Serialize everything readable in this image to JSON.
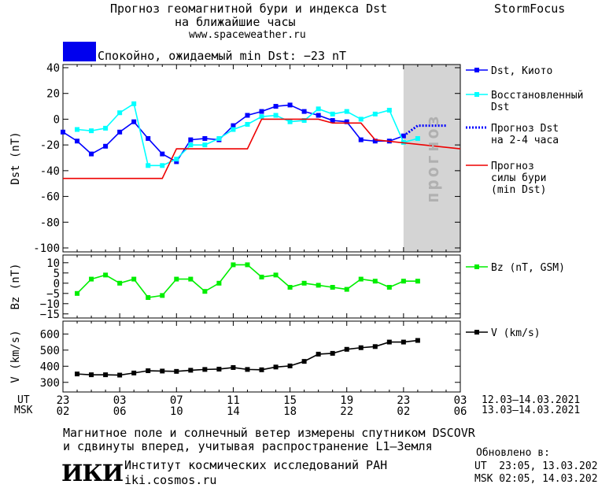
{
  "header": {
    "title_line1": "Прогноз геомагнитной бури и индекса Dst",
    "title_line2": "на ближайшие часы",
    "url": "www.spaceweather.ru",
    "brand": "StormFocus",
    "status_text": "Спокойно, ожидаемый min Dst: −23 nT",
    "status_color": "#0000ee"
  },
  "chart_data": [
    {
      "type": "line",
      "panel": "dst",
      "ylabel": "Dst (nT)",
      "ylim": [
        -100,
        40
      ],
      "yticks": [
        40,
        20,
        0,
        -20,
        -40,
        -60,
        -80,
        -100
      ],
      "xlim": [
        0,
        28
      ],
      "forecast_band": [
        24,
        28
      ],
      "forecast_label": "прогноз",
      "series": [
        {
          "name": "Dst, Киото",
          "color": "#0000ff",
          "marker": "square",
          "style": "solid",
          "x": [
            0,
            1,
            2,
            3,
            4,
            5,
            6,
            7,
            8,
            9,
            10,
            11,
            12,
            13,
            14,
            15,
            16,
            17,
            18,
            19,
            20,
            21,
            22,
            23,
            24
          ],
          "y": [
            -10,
            -17,
            -27,
            -21,
            -10,
            -2,
            -15,
            -27,
            -33,
            -16,
            -15,
            -16,
            -5,
            3,
            6,
            10,
            11,
            6,
            3,
            -1,
            -2,
            -16,
            -17,
            -17,
            -13
          ]
        },
        {
          "name": "Восстановленный Dst",
          "color": "#00ffff",
          "marker": "square",
          "style": "solid",
          "x": [
            1,
            2,
            3,
            4,
            5,
            6,
            7,
            8,
            9,
            10,
            11,
            12,
            13,
            14,
            15,
            16,
            17,
            18,
            19,
            20,
            21,
            22,
            23,
            24,
            25
          ],
          "y": [
            -8,
            -9,
            -7,
            5,
            12,
            -36,
            -36,
            -31,
            -20,
            -20,
            -15,
            -8,
            -4,
            2,
            3,
            -2,
            -1,
            8,
            4,
            6,
            0,
            4,
            7,
            -18,
            -15
          ]
        },
        {
          "name": "Прогноз Dst на 2-4 часа",
          "color": "#0000ff",
          "marker": "none",
          "style": "dotted",
          "x": [
            24,
            25,
            26,
            27
          ],
          "y": [
            -13,
            -5,
            -5,
            -5
          ]
        },
        {
          "name": "Прогноз силы бури (min Dst)",
          "color": "#ee0000",
          "marker": "none",
          "style": "step",
          "x": [
            0,
            7,
            8,
            13,
            14,
            18,
            19,
            21,
            22,
            28
          ],
          "y": [
            -46,
            -46,
            -23,
            -23,
            0,
            0,
            -3,
            -3,
            -16,
            -23
          ]
        }
      ]
    },
    {
      "type": "line",
      "panel": "bz",
      "ylabel": "Bz (nT)",
      "ylim": [
        -17,
        13
      ],
      "yticks": [
        10,
        5,
        0,
        -5,
        -10,
        -15
      ],
      "ytick_labels": [
        "10",
        "5",
        "0",
        "−5",
        "−10",
        "−15"
      ],
      "xlim": [
        0,
        28
      ],
      "series": [
        {
          "name": "Bz (nT, GSM)",
          "color": "#00ee00",
          "marker": "square",
          "style": "solid",
          "x": [
            1,
            2,
            3,
            4,
            5,
            6,
            7,
            8,
            9,
            10,
            11,
            12,
            13,
            14,
            15,
            16,
            17,
            18,
            19,
            20,
            21,
            22,
            23,
            24,
            25
          ],
          "y": [
            -5,
            2,
            4,
            0,
            2,
            -7,
            -6,
            2,
            2,
            -4,
            0,
            9,
            9,
            3,
            4,
            -2,
            0,
            -1,
            -2,
            -3,
            2,
            1,
            -2,
            1,
            1
          ]
        }
      ]
    },
    {
      "type": "line",
      "panel": "v",
      "ylabel": "V (km/s)",
      "ylim": [
        250,
        670
      ],
      "yticks": [
        600,
        500,
        400,
        300
      ],
      "xlim": [
        0,
        28
      ],
      "series": [
        {
          "name": "V (km/s)",
          "color": "#000000",
          "marker": "square",
          "style": "solid",
          "x": [
            1,
            2,
            3,
            4,
            5,
            6,
            7,
            8,
            9,
            10,
            11,
            12,
            13,
            14,
            15,
            16,
            17,
            18,
            19,
            20,
            21,
            22,
            23,
            24,
            25
          ],
          "y": [
            352,
            347,
            347,
            345,
            358,
            372,
            370,
            368,
            375,
            380,
            382,
            392,
            380,
            378,
            395,
            402,
            430,
            475,
            480,
            505,
            515,
            522,
            550,
            550,
            560
          ]
        }
      ]
    }
  ],
  "x_axis": {
    "ut_label": "UT",
    "msk_label": "MSK",
    "ut_ticks": [
      "23",
      "03",
      "07",
      "11",
      "15",
      "19",
      "23",
      "03"
    ],
    "msk_ticks": [
      "02",
      "06",
      "10",
      "14",
      "18",
      "22",
      "02",
      "06"
    ],
    "tick_positions": [
      0,
      4,
      8,
      12,
      16,
      20,
      24,
      28
    ],
    "ut_range": "12.03–14.03.2021",
    "msk_range": "13.03–14.03.2021"
  },
  "footer": {
    "note_line1": "Магнитное поле и солнечный ветер измерены спутником DSCOVR",
    "note_line2": "и сдвинуты вперед, учитывая распространение L1–Земля",
    "logo_text": "ИКИ",
    "institute": "Институт космических исследований РАН",
    "site": "iki.cosmos.ru",
    "updated_label": "Обновлено в:",
    "updated_ut": "UT  23:05, 13.03.2021",
    "updated_msk": "MSK 02:05, 14.03.2021"
  }
}
